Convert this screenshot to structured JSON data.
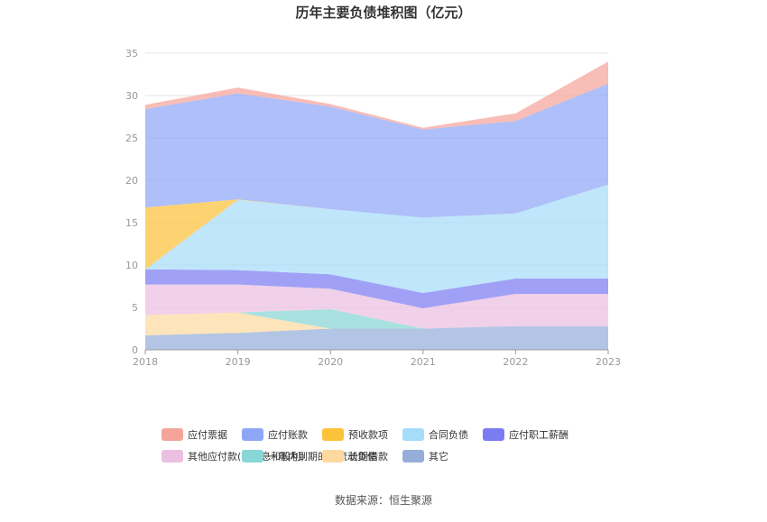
{
  "chart_data": {
    "type": "area",
    "stacked": true,
    "title": "历年主要负债堆积图（亿元）",
    "xlabel": "",
    "ylabel": "",
    "x": [
      "2018",
      "2019",
      "2020",
      "2021",
      "2022",
      "2023"
    ],
    "ylim": [
      0,
      35
    ],
    "yticks": [
      0,
      5,
      10,
      15,
      20,
      25,
      30,
      35
    ],
    "grid": true,
    "legend_position": "bottom",
    "stack_order": [
      "其它",
      "长期借款",
      "一年内到期的非流动负债",
      "其他应付款(含利息和股利)",
      "应付职工薪酬",
      "合同负债",
      "预收款项",
      "应付账款",
      "应付票据"
    ],
    "series": [
      {
        "name": "应付票据",
        "color": "#f5a49a",
        "values": [
          0.5,
          0.7,
          0.3,
          0.2,
          0.9,
          2.6
        ]
      },
      {
        "name": "应付账款",
        "color": "#8fa6f7",
        "values": [
          11.6,
          12.5,
          12.1,
          10.4,
          10.9,
          11.9
        ]
      },
      {
        "name": "预收款项",
        "color": "#fcc23a",
        "values": [
          7.3,
          0.05,
          0,
          0,
          0,
          0
        ]
      },
      {
        "name": "合同负债",
        "color": "#a6dcfa",
        "values": [
          0,
          8.3,
          7.7,
          8.9,
          7.7,
          11.1
        ]
      },
      {
        "name": "应付职工薪酬",
        "color": "#7b7cf2",
        "values": [
          1.8,
          1.7,
          1.7,
          1.8,
          1.8,
          1.8
        ]
      },
      {
        "name": "其他应付款(含利息和股利)",
        "color": "#ebbfe0",
        "values": [
          3.6,
          3.3,
          2.4,
          2.4,
          3.8,
          3.8
        ]
      },
      {
        "name": "一年内到期的非流动负债",
        "color": "#88d6d6",
        "values": [
          0,
          0,
          2.3,
          0,
          0,
          0
        ]
      },
      {
        "name": "长期借款",
        "color": "#fdd9a0",
        "values": [
          2.4,
          2.4,
          0,
          0,
          0,
          0
        ]
      },
      {
        "name": "其它",
        "color": "#96aed9",
        "values": [
          1.7,
          2.0,
          2.5,
          2.5,
          2.8,
          2.8
        ]
      }
    ]
  },
  "footer": {
    "source": "数据来源：恒生聚源"
  }
}
